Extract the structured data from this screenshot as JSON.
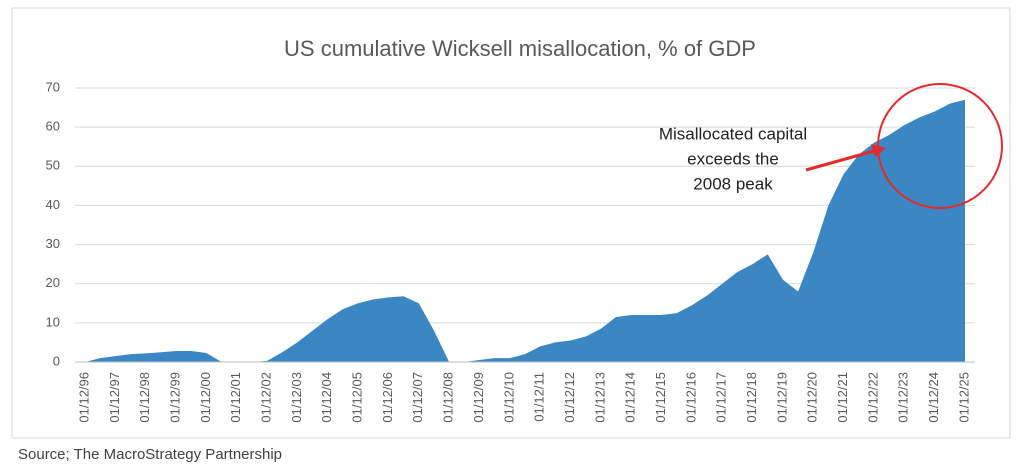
{
  "chart_data": {
    "type": "area",
    "title": "US cumulative Wicksell misallocation, % of GDP",
    "categories": [
      "01/12/96",
      null,
      "01/12/97",
      null,
      "01/12/98",
      null,
      "01/12/99",
      null,
      "01/12/00",
      null,
      "01/12/01",
      null,
      "01/12/02",
      null,
      "01/12/03",
      null,
      "01/12/04",
      null,
      "01/12/05",
      null,
      "01/12/06",
      null,
      "01/12/07",
      null,
      "01/12/08",
      null,
      "01/12/09",
      null,
      "01/12/10",
      null,
      "01/12/11",
      null,
      "01/12/12",
      null,
      "01/12/13",
      null,
      "01/12/14",
      null,
      "01/12/15",
      null,
      "01/12/16",
      null,
      "01/12/17",
      null,
      "01/12/18",
      null,
      "01/12/19",
      null,
      "01/12/20",
      null,
      "01/12/21",
      null,
      "01/12/22",
      null,
      "01/12/23",
      null,
      "01/12/24",
      null,
      "01/12/25"
    ],
    "values": [
      0,
      1,
      1.5,
      2,
      2.2,
      2.5,
      2.8,
      2.8,
      2.3,
      0,
      0,
      0,
      0.3,
      2.5,
      5,
      8,
      11,
      13.5,
      15,
      16,
      16.5,
      16.8,
      15,
      8,
      0,
      0,
      0.5,
      1,
      1,
      2,
      4,
      5,
      5.5,
      6.5,
      8.5,
      11.5,
      12,
      12,
      12,
      12.5,
      14.5,
      17,
      20,
      23,
      25,
      27.5,
      21,
      18,
      28,
      40,
      48,
      53,
      56,
      58,
      60.5,
      62.5,
      64,
      66,
      67
    ],
    "color": "#3a87c4",
    "ylim": [
      0,
      70
    ],
    "yticks": [
      0,
      10,
      20,
      30,
      40,
      50,
      60,
      70
    ],
    "grid": true,
    "annotation": [
      "Misallocated capital",
      "exceeds the",
      "2008 peak"
    ],
    "source": "Source; The MacroStrategy Partnership"
  }
}
